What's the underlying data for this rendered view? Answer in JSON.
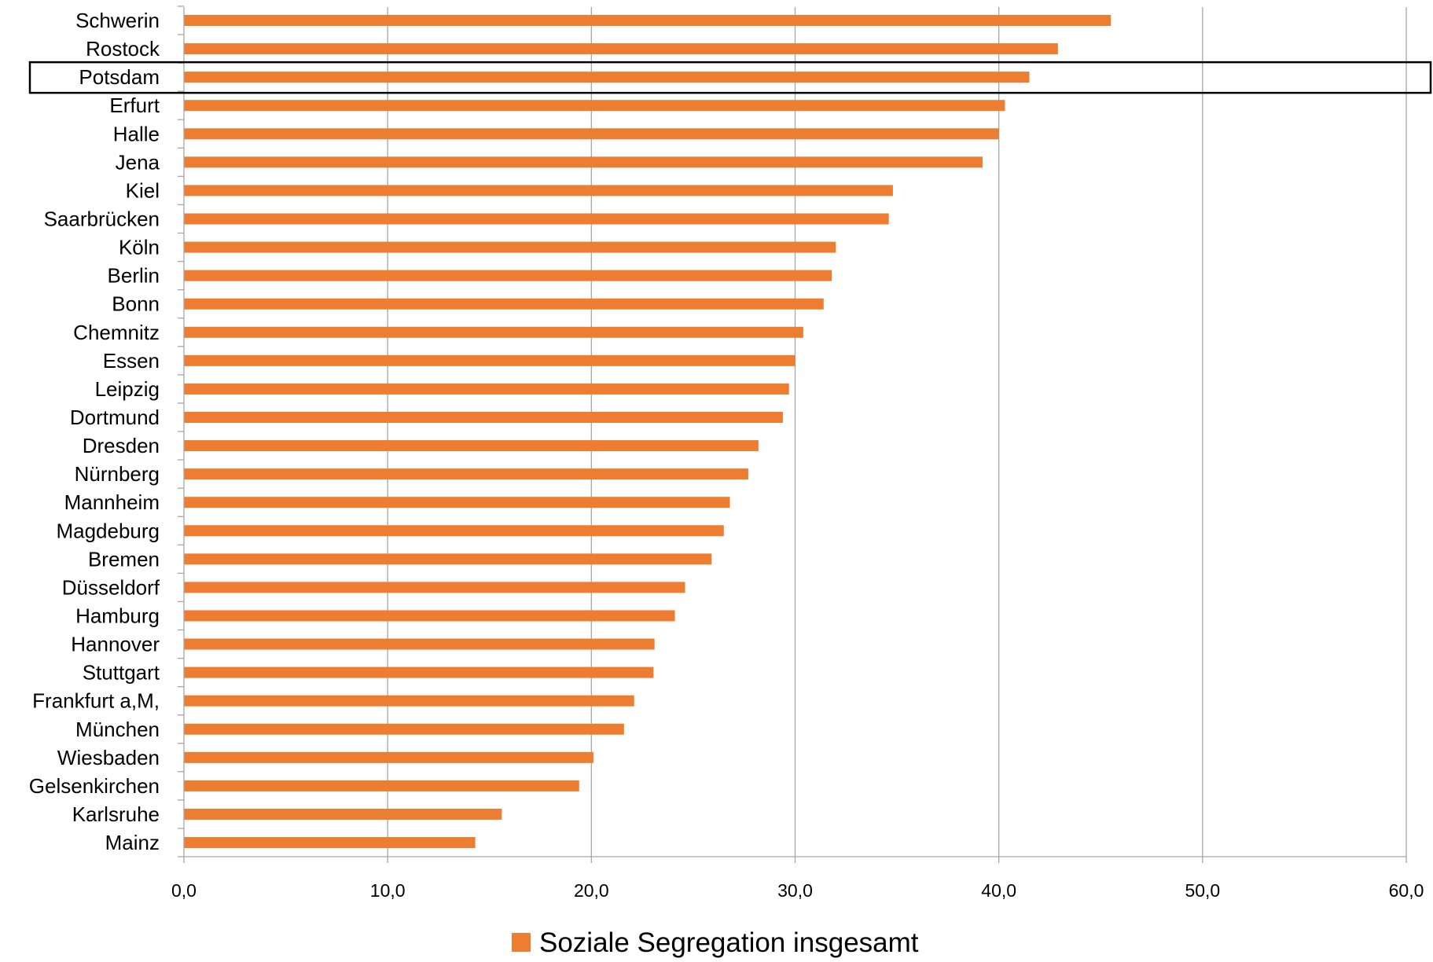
{
  "chart_data": {
    "type": "bar",
    "orientation": "horizontal",
    "categories": [
      "Schwerin",
      "Rostock",
      "Potsdam",
      "Erfurt",
      "Halle",
      "Jena",
      "Kiel",
      "Saarbrücken",
      "Köln",
      "Berlin",
      "Bonn",
      "Chemnitz",
      "Essen",
      "Leipzig",
      "Dortmund",
      "Dresden",
      "Nürnberg",
      "Mannheim",
      "Magdeburg",
      "Bremen",
      "Düsseldorf",
      "Hamburg",
      "Hannover",
      "Stuttgart",
      "Frankfurt a,M,",
      "München",
      "Wiesbaden",
      "Gelsenkirchen",
      "Karlsruhe",
      "Mainz"
    ],
    "series": [
      {
        "name": "Soziale Segregation insgesamt",
        "color": "#ED7D31",
        "values": [
          45.5,
          42.9,
          41.5,
          40.3,
          40.0,
          39.2,
          34.8,
          34.6,
          32.0,
          31.8,
          31.4,
          30.4,
          30.0,
          29.7,
          29.4,
          28.2,
          27.7,
          26.8,
          26.5,
          25.9,
          24.6,
          24.1,
          23.1,
          23.05,
          22.1,
          21.6,
          20.1,
          19.4,
          15.6,
          14.3
        ]
      }
    ],
    "xlim": [
      0,
      60
    ],
    "xticks": [
      "0,0",
      "10,0",
      "20,0",
      "30,0",
      "40,0",
      "50,0",
      "60,0"
    ],
    "xtick_values": [
      0,
      10,
      20,
      30,
      40,
      50,
      60
    ],
    "grid": "vertical",
    "legend_position": "bottom",
    "highlighted_category": "Potsdam",
    "gridline_color": "#A6A6A6",
    "highlight_box_color": "#000000"
  }
}
